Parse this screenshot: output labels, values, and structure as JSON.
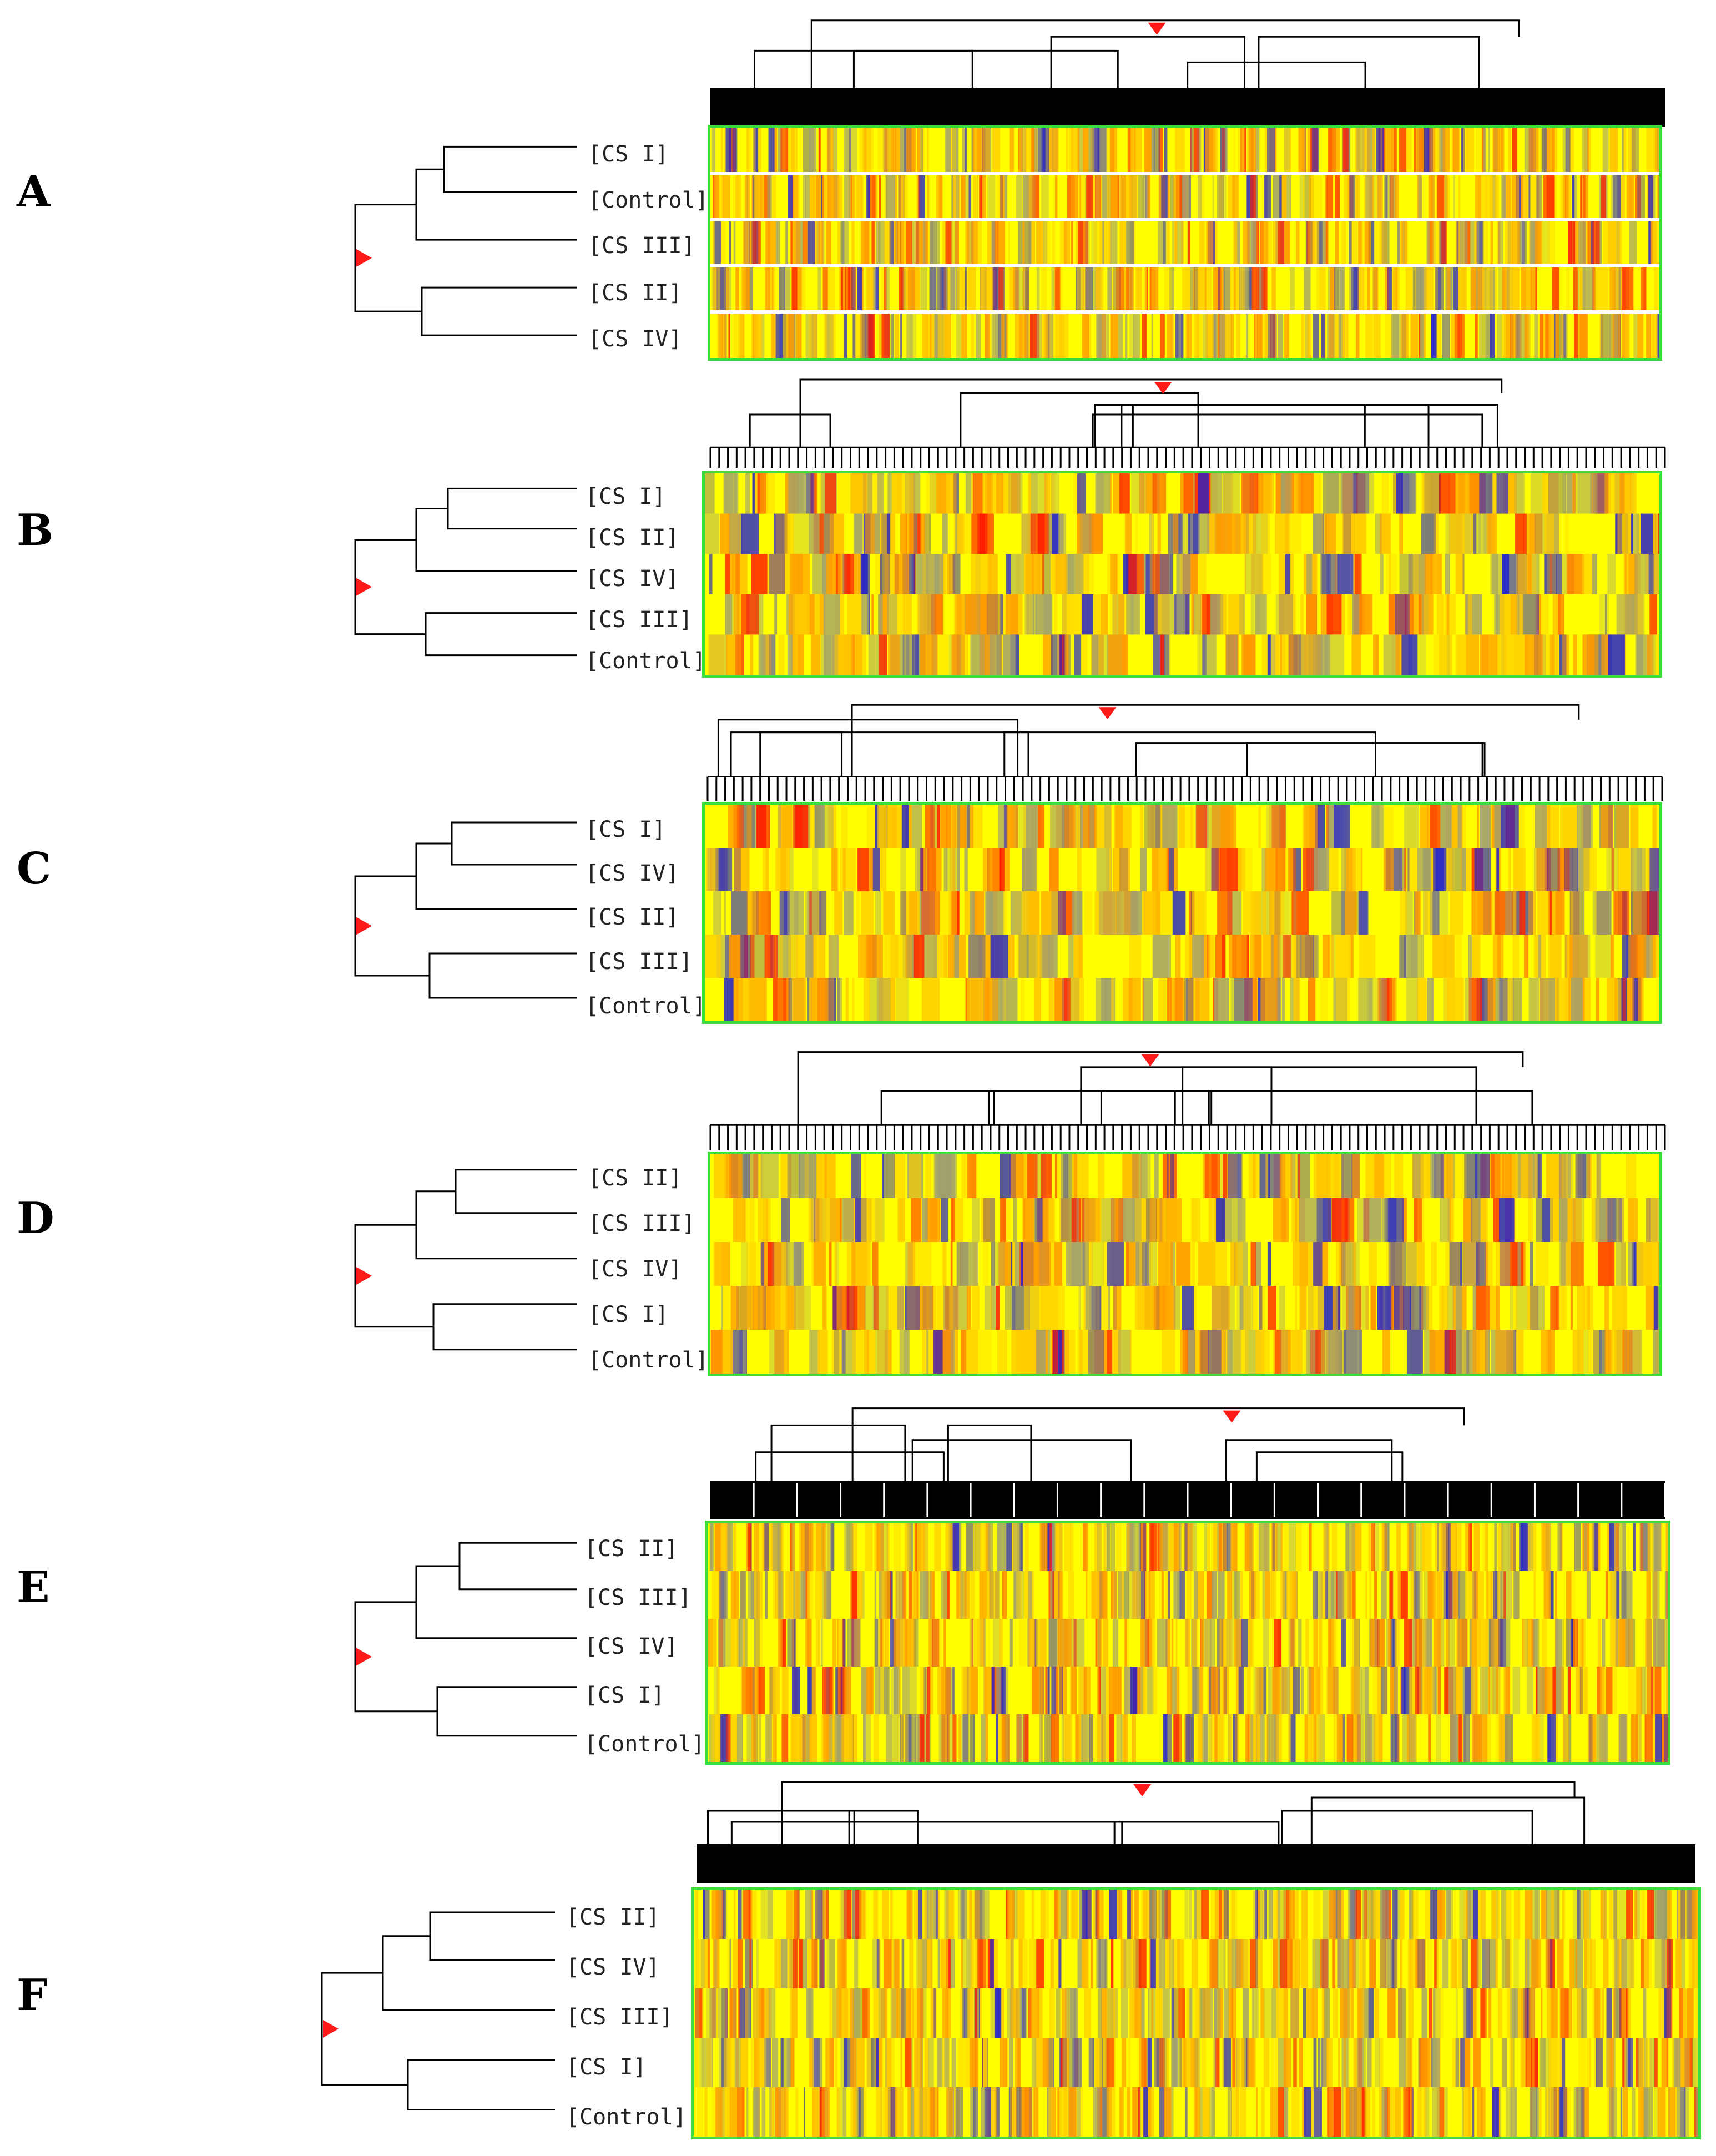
{
  "figure": {
    "panels": [
      {
        "id": "A",
        "label": "A",
        "rows": [
          "[CS I]",
          "[Control]",
          "[CS III]",
          "[CS II]",
          "[CS IV]"
        ]
      },
      {
        "id": "B",
        "label": "B",
        "rows": [
          "[CS I]",
          "[CS II]",
          "[CS IV]",
          "[CS III]",
          "[Control]"
        ]
      },
      {
        "id": "C",
        "label": "C",
        "rows": [
          "[CS I]",
          "[CS IV]",
          "[CS II]",
          "[CS III]",
          "[Control]"
        ]
      },
      {
        "id": "D",
        "label": "D",
        "rows": [
          "[CS II]",
          "[CS III]",
          "[CS IV]",
          "[CS I]",
          "[Control]"
        ]
      },
      {
        "id": "E",
        "label": "E",
        "rows": [
          "[CS II]",
          "[CS III]",
          "[CS IV]",
          "[CS I]",
          "[Control]"
        ]
      },
      {
        "id": "F",
        "label": "F",
        "rows": [
          "[CS II]",
          "[CS IV]",
          "[CS III]",
          "[CS I]",
          "[Control]"
        ]
      }
    ],
    "colors": {
      "frame": "#3ddc3d",
      "marker": "#ff1a1a",
      "high": "#ff1a00",
      "mid_high": "#ff9a00",
      "base": "#ffff00",
      "mid_low": "#a0a070",
      "low": "#2020d0"
    }
  }
}
